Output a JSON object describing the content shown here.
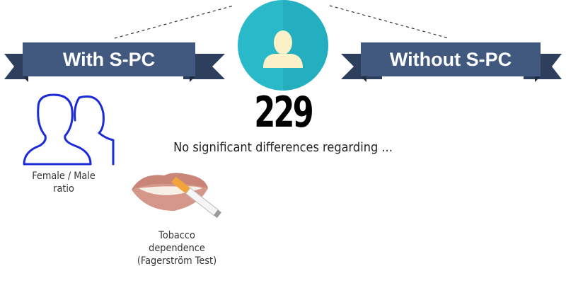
{
  "header": {
    "left_label": "With S-PC",
    "right_label": "Without S-PC"
  },
  "center": {
    "count": "229",
    "subtitle": "No significant differences regarding ..."
  },
  "items": [
    {
      "caption_line1": "Female / Male",
      "caption_line2": "ratio",
      "icon": "male-female-icon"
    },
    {
      "caption_line1": "Tobacco",
      "caption_line2": "dependence",
      "caption_line3": "(Fagerström Test)",
      "icon": "lips-cigarette-icon"
    }
  ],
  "colors": {
    "ribbon": "#41587f",
    "ribbon_dark": "#2e3f5e",
    "circle": "#29b9c9",
    "person": "#fbf0c8",
    "person_body": "#0f8a97",
    "outline_blue": "#1c2bd6",
    "lips": "#d4978a"
  }
}
